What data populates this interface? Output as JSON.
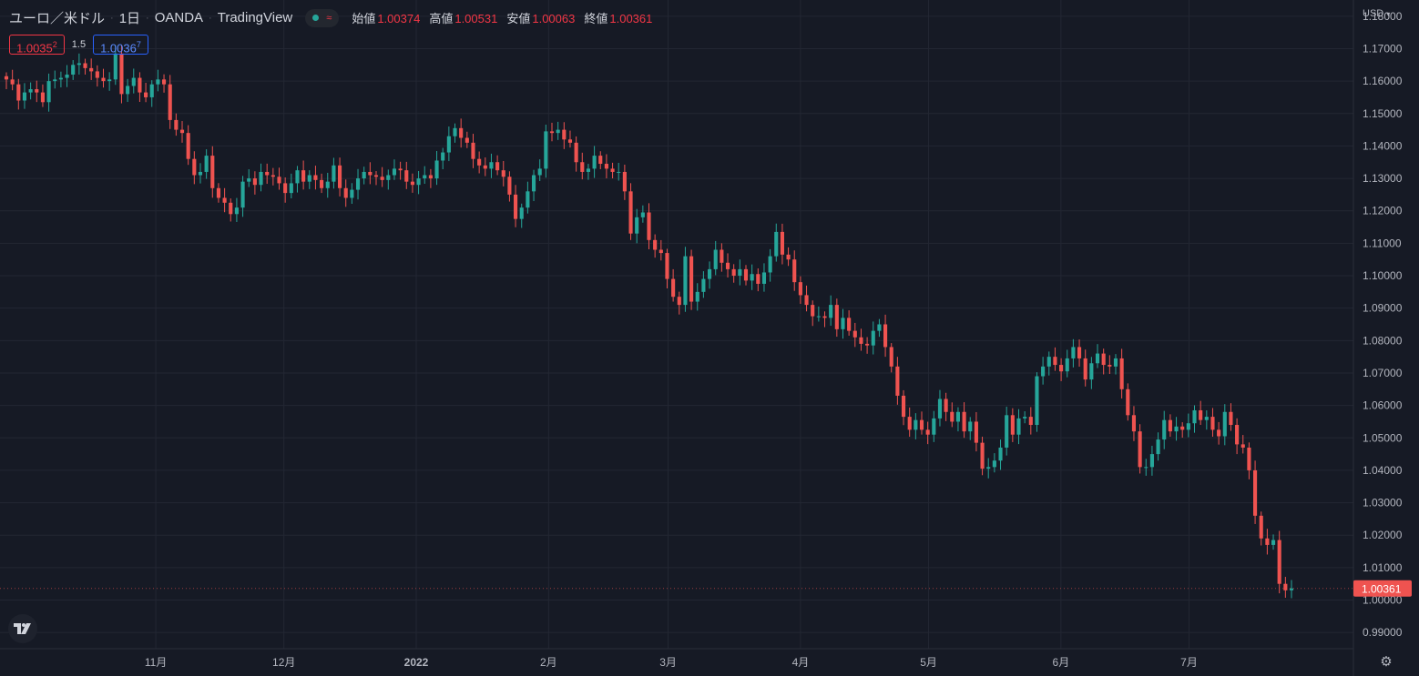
{
  "header": {
    "symbol": "ユーロ／米ドル",
    "interval": "1日",
    "broker": "OANDA",
    "source": "TradingView",
    "open_label": "始値",
    "open_value": "1.00374",
    "high_label": "高値",
    "high_value": "1.00531",
    "low_label": "安値",
    "low_value": "1.00063",
    "close_label": "終値",
    "close_value": "1.00361"
  },
  "quote": {
    "sell_main": "1.0035",
    "sell_sup": "2",
    "spread": "1.5",
    "buy_main": "1.0036",
    "buy_sup": "7"
  },
  "price_axis": {
    "currency": "USD",
    "last_price_label": "1.00361"
  },
  "colors": {
    "background": "#161a25",
    "up": "#26a69a",
    "down": "#ef5350",
    "grid": "#232733",
    "text": "#b2b5be"
  },
  "chart_data": {
    "type": "candlestick",
    "ylim": [
      0.985,
      1.185
    ],
    "y_ticks": [
      "1.18000",
      "1.17000",
      "1.16000",
      "1.15000",
      "1.14000",
      "1.13000",
      "1.12000",
      "1.11000",
      "1.10000",
      "1.09000",
      "1.08000",
      "1.07000",
      "1.06000",
      "1.05000",
      "1.04000",
      "1.03000",
      "1.02000",
      "1.01000",
      "1.00000",
      "0.99000"
    ],
    "x_ticks": [
      {
        "label": "11月",
        "bold": false,
        "date": "2021-11-01"
      },
      {
        "label": "12月",
        "bold": false,
        "date": "2021-12-01"
      },
      {
        "label": "2022",
        "bold": true,
        "date": "2022-01-01"
      },
      {
        "label": "2月",
        "bold": false,
        "date": "2022-02-01"
      },
      {
        "label": "3月",
        "bold": false,
        "date": "2022-03-01"
      },
      {
        "label": "4月",
        "bold": false,
        "date": "2022-04-01"
      },
      {
        "label": "5月",
        "bold": false,
        "date": "2022-05-01"
      },
      {
        "label": "6月",
        "bold": false,
        "date": "2022-06-01"
      },
      {
        "label": "7月",
        "bold": false,
        "date": "2022-07-01"
      }
    ],
    "closes": [
      1.1605,
      1.159,
      1.154,
      1.1565,
      1.1575,
      1.1565,
      1.1535,
      1.16,
      1.1605,
      1.161,
      1.162,
      1.165,
      1.1655,
      1.164,
      1.163,
      1.161,
      1.16,
      1.1605,
      1.1685,
      1.156,
      1.1585,
      1.161,
      1.1565,
      1.155,
      1.159,
      1.1605,
      1.159,
      1.148,
      1.145,
      1.144,
      1.136,
      1.131,
      1.132,
      1.137,
      1.127,
      1.124,
      1.1225,
      1.119,
      1.121,
      1.129,
      1.13,
      1.128,
      1.132,
      1.131,
      1.1305,
      1.1285,
      1.1255,
      1.1285,
      1.1325,
      1.129,
      1.131,
      1.1295,
      1.127,
      1.129,
      1.134,
      1.127,
      1.124,
      1.1265,
      1.13,
      1.132,
      1.131,
      1.1305,
      1.1295,
      1.131,
      1.133,
      1.1325,
      1.129,
      1.128,
      1.13,
      1.131,
      1.13,
      1.1355,
      1.138,
      1.143,
      1.1455,
      1.1425,
      1.141,
      1.136,
      1.134,
      1.133,
      1.135,
      1.1325,
      1.1305,
      1.125,
      1.1175,
      1.121,
      1.126,
      1.131,
      1.133,
      1.1445,
      1.144,
      1.145,
      1.142,
      1.141,
      1.135,
      1.132,
      1.133,
      1.137,
      1.1345,
      1.133,
      1.132,
      1.132,
      1.126,
      1.113,
      1.118,
      1.1195,
      1.111,
      1.108,
      1.107,
      1.099,
      1.0935,
      1.091,
      1.106,
      1.092,
      1.095,
      1.099,
      1.102,
      1.108,
      1.104,
      1.102,
      1.1,
      1.102,
      1.0985,
      1.1005,
      1.0975,
      1.101,
      1.106,
      1.1135,
      1.1065,
      1.105,
      1.098,
      1.094,
      1.091,
      1.0875,
      1.0875,
      1.087,
      1.091,
      1.0835,
      1.087,
      1.083,
      1.081,
      1.079,
      1.0785,
      1.083,
      1.085,
      1.078,
      1.072,
      1.063,
      1.0565,
      1.0525,
      1.0555,
      1.0525,
      1.051,
      1.056,
      1.062,
      1.058,
      1.055,
      1.058,
      1.052,
      1.055,
      1.0485,
      1.0405,
      1.041,
      1.043,
      1.047,
      1.057,
      1.051,
      1.056,
      1.0565,
      1.054,
      1.069,
      1.072,
      1.075,
      1.0725,
      1.0705,
      1.0745,
      1.078,
      1.0745,
      1.068,
      1.073,
      1.076,
      1.0725,
      1.072,
      1.0745,
      1.065,
      1.057,
      1.052,
      1.041,
      1.041,
      1.045,
      1.0495,
      1.0555,
      1.052,
      1.0535,
      1.0525,
      1.0545,
      1.0585,
      1.0555,
      1.0565,
      1.0525,
      1.0505,
      1.058,
      1.054,
      1.048,
      1.047,
      1.04,
      1.026,
      1.019,
      1.017,
      1.0185,
      1.005,
      1.003,
      1.0036
    ]
  }
}
